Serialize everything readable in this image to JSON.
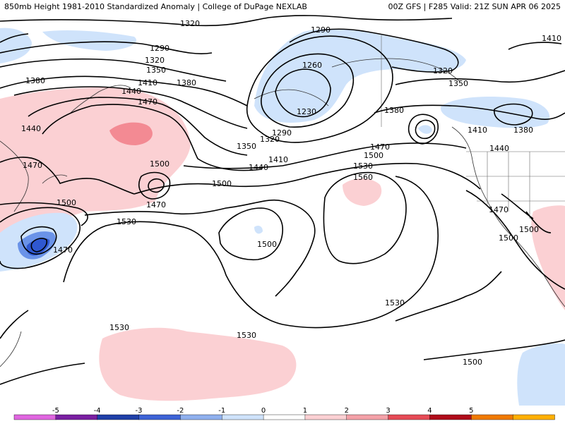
{
  "header": {
    "title_left": "850mb Height 1981-2010 Standardized Anomaly | College of DuPage NEXLAB",
    "title_right": "00Z GFS | F285 Valid: 21Z SUN APR 06 2025"
  },
  "contour_labels": [
    "1230",
    "1260",
    "1290",
    "1320",
    "1350",
    "1380",
    "1410",
    "1440",
    "1470",
    "1500",
    "1530",
    "1560"
  ],
  "colorbar": {
    "ticks": [
      "-5",
      "-4",
      "-3",
      "-2",
      "-1",
      "0",
      "1",
      "2",
      "3",
      "4",
      "5"
    ],
    "colors": [
      "#e066e0",
      "#7a1fa2",
      "#1f3fa8",
      "#3d63d6",
      "#8fb0ee",
      "#cfe3fb",
      "#ffffff",
      "#fbd0d3",
      "#f4a1a8",
      "#e64b56",
      "#b00b1a",
      "#f07a00",
      "#ffb000"
    ]
  },
  "colors": {
    "positive_light": "#fbd0d3",
    "positive_medium": "#f38a93",
    "negative_light": "#cfe3fb",
    "negative_medium": "#6a93e8",
    "negative_strong": "#2f58d0",
    "contour": "#000000"
  }
}
